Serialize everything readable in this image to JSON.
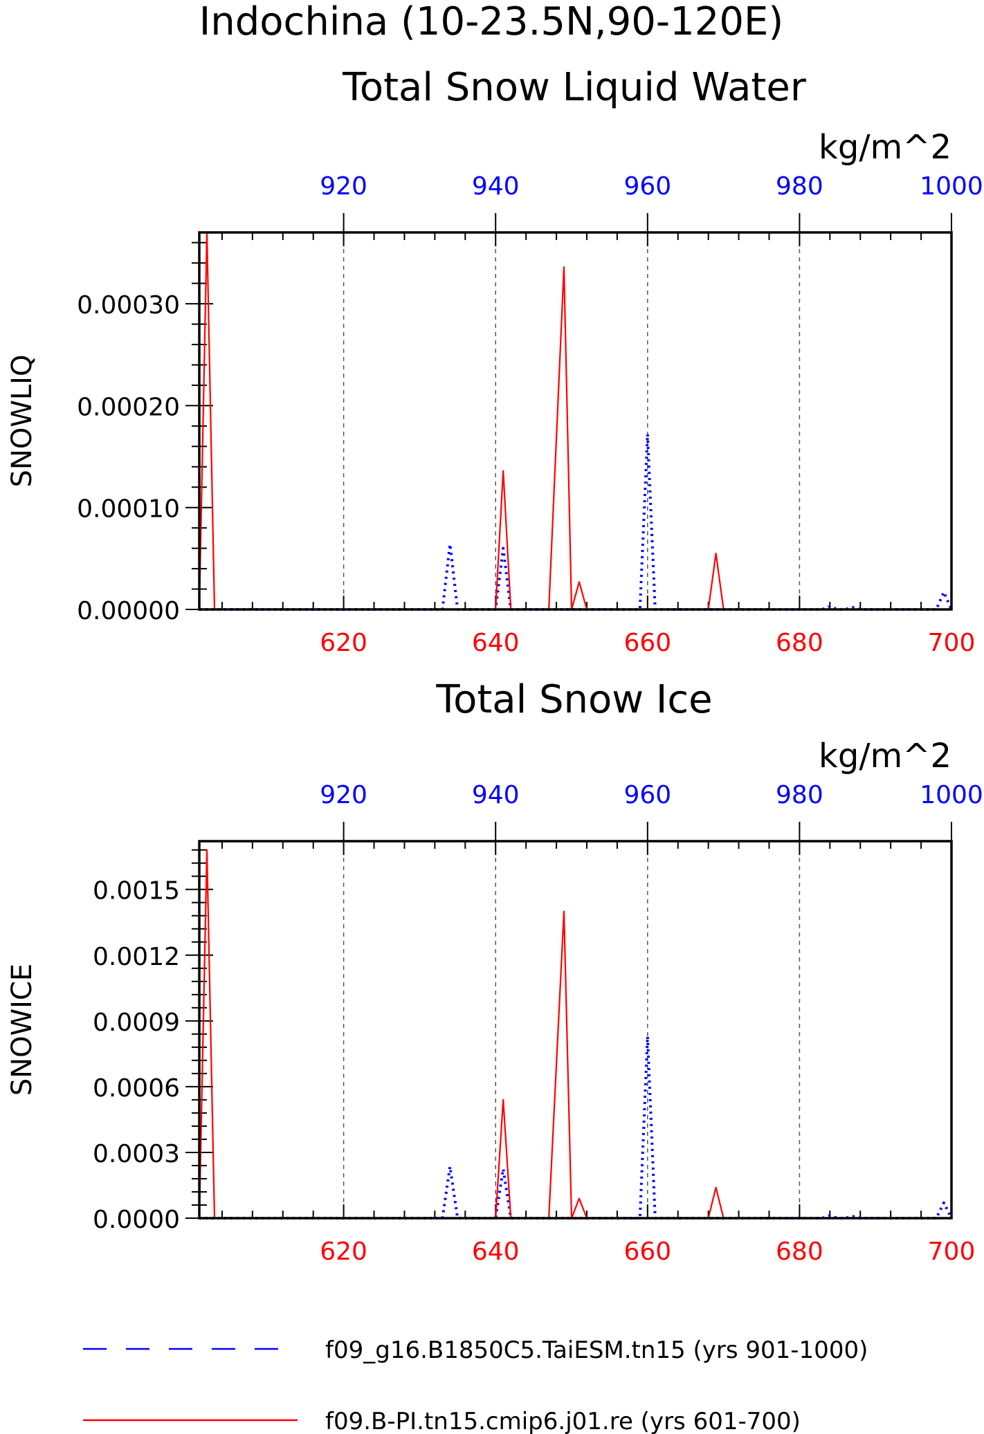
{
  "figure": {
    "title": "Indochina (10-23.5N,90-120E)"
  },
  "colors": {
    "blue": "#0000ff",
    "red": "#ff0000",
    "frame": "#000000",
    "grid": "#555555"
  },
  "legend": [
    {
      "label": "f09_g16.B1850C5.TaiESM.tn15 (yrs 901-1000)",
      "color": "#0000ff",
      "style": "dashed"
    },
    {
      "label": "f09.B-PI.tn15.cmip6.j01.re (yrs 601-700)",
      "color": "#ff0000",
      "style": "solid"
    }
  ],
  "chart_data": [
    {
      "type": "line",
      "title": "Total Snow Liquid Water",
      "units": "kg/m^2",
      "ylabel": "SNOWLIQ",
      "ylim": [
        0,
        0.00037
      ],
      "yticks": [
        "0.00000",
        "0.00010",
        "0.00020",
        "0.00030"
      ],
      "ytick_values": [
        0,
        0.0001,
        0.0002,
        0.0003
      ],
      "grid": "vertical dashed",
      "x_bottom": {
        "range": [
          601,
          700
        ],
        "ticks": [
          620,
          640,
          660,
          680,
          700
        ],
        "color": "#ff0000"
      },
      "x_top": {
        "range": [
          901,
          1000
        ],
        "ticks": [
          920,
          940,
          960,
          980,
          1000
        ],
        "color": "#0000ff"
      },
      "series": [
        {
          "name": "f09_g16.B1850C5.TaiESM.tn15 (yrs 901-1000)",
          "axis": "top",
          "color": "#0000ff",
          "style": "dotted",
          "points": [
            [
              901,
              0
            ],
            [
              933,
              0
            ],
            [
              934,
              6.4e-05
            ],
            [
              935,
              0
            ],
            [
              940,
              0
            ],
            [
              941,
              6e-05
            ],
            [
              942,
              0
            ],
            [
              959,
              0
            ],
            [
              960,
              0.000172
            ],
            [
              961,
              0
            ],
            [
              983,
              0
            ],
            [
              984,
              3e-06
            ],
            [
              985,
              0
            ],
            [
              986,
              0
            ],
            [
              987,
              2e-06
            ],
            [
              988,
              0
            ],
            [
              998,
              0
            ],
            [
              999,
              1.7e-05
            ],
            [
              1000,
              0
            ]
          ]
        },
        {
          "name": "f09.B-PI.tn15.cmip6.j01.re (yrs 601-700)",
          "axis": "bottom",
          "color": "#ff0000",
          "style": "solid",
          "points": [
            [
              601,
              0
            ],
            [
              602,
              0.00037
            ],
            [
              603,
              0
            ],
            [
              640,
              0
            ],
            [
              641,
              0.000136
            ],
            [
              642,
              0
            ],
            [
              647,
              0
            ],
            [
              649,
              0.000336
            ],
            [
              650,
              0
            ],
            [
              651,
              2.7e-05
            ],
            [
              652,
              0
            ],
            [
              668,
              0
            ],
            [
              669,
              5.5e-05
            ],
            [
              670,
              0
            ],
            [
              700,
              0
            ]
          ]
        }
      ]
    },
    {
      "type": "line",
      "title": "Total Snow Ice",
      "units": "kg/m^2",
      "ylabel": "SNOWICE",
      "ylim": [
        0,
        0.00172
      ],
      "yticks": [
        "0.0000",
        "0.0003",
        "0.0006",
        "0.0009",
        "0.0012",
        "0.0015"
      ],
      "ytick_values": [
        0,
        0.0003,
        0.0006,
        0.0009,
        0.0012,
        0.0015
      ],
      "grid": "vertical dashed",
      "x_bottom": {
        "range": [
          601,
          700
        ],
        "ticks": [
          620,
          640,
          660,
          680,
          700
        ],
        "color": "#ff0000"
      },
      "x_top": {
        "range": [
          901,
          1000
        ],
        "ticks": [
          920,
          940,
          960,
          980,
          1000
        ],
        "color": "#0000ff"
      },
      "series": [
        {
          "name": "f09_g16.B1850C5.TaiESM.tn15 (yrs 901-1000)",
          "axis": "top",
          "color": "#0000ff",
          "style": "dotted",
          "points": [
            [
              901,
              0
            ],
            [
              933,
              0
            ],
            [
              934,
              0.000235
            ],
            [
              935,
              0
            ],
            [
              940,
              0
            ],
            [
              941,
              0.000225
            ],
            [
              942,
              0
            ],
            [
              959,
              0
            ],
            [
              960,
              0.00083
            ],
            [
              961,
              0
            ],
            [
              983,
              0
            ],
            [
              984,
              1.2e-05
            ],
            [
              985,
              0
            ],
            [
              986,
              0
            ],
            [
              987,
              8e-06
            ],
            [
              988,
              0
            ],
            [
              998,
              0
            ],
            [
              999,
              7e-05
            ],
            [
              1000,
              0
            ]
          ]
        },
        {
          "name": "f09.B-PI.tn15.cmip6.j01.re (yrs 601-700)",
          "axis": "bottom",
          "color": "#ff0000",
          "style": "solid",
          "points": [
            [
              601,
              0
            ],
            [
              602,
              0.00168
            ],
            [
              603,
              0
            ],
            [
              640,
              0
            ],
            [
              641,
              0.00054
            ],
            [
              642,
              0
            ],
            [
              647,
              0
            ],
            [
              649,
              0.0014
            ],
            [
              650,
              0
            ],
            [
              651,
              9e-05
            ],
            [
              652,
              0
            ],
            [
              668,
              0
            ],
            [
              669,
              0.00014
            ],
            [
              670,
              0
            ],
            [
              700,
              0
            ]
          ]
        }
      ]
    }
  ]
}
